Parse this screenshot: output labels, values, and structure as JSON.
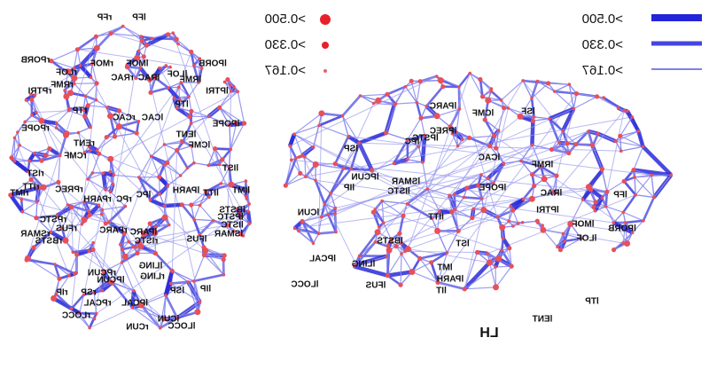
{
  "legend": {
    "nodes": [
      ">0.500",
      ">0.330",
      ">0.167"
    ],
    "edges": [
      ">0.500",
      ">0.330",
      ">0.167"
    ]
  },
  "axial_labels": [
    "rFP",
    "lFP",
    "rPORB",
    "rMOF",
    "lMOF",
    "lPORB",
    "rLOF",
    "lLOF",
    "rRMF",
    "rRAC",
    "lRAC",
    "lRMF",
    "rPTRI",
    "lPTRI",
    "rTP",
    "lTP",
    "rCAC",
    "lCAC",
    "rPOPE",
    "lPOPE",
    "rENT",
    "lENT",
    "rCMF",
    "lCMF",
    "rIST",
    "lIST",
    "rITT",
    "rIMT",
    "rPREC",
    "rPARH",
    "rPC",
    "lPC",
    "lPARH",
    "lITT",
    "lIMT",
    "rPSTC",
    "lPSTC",
    "rFUS",
    "rSMAR",
    "rBSTS",
    "rPARC",
    "lPARC",
    "rISTC",
    "lISTC",
    "lFUS",
    "lSMAR",
    "lBSTS",
    "rPCUN",
    "lLING",
    "rLING",
    "lPCUN",
    "rIP",
    "lIP",
    "rSP",
    "lSP",
    "rPCAL",
    "lPCAL",
    "rLOCC",
    "lLOCC",
    "rCUN",
    "lCUN"
  ],
  "sagittal_labels": [
    "lPARC",
    "lCMF",
    "lSF",
    "lPREC",
    "lPSTC",
    "lPC",
    "lSP",
    "lCAC",
    "lRMF",
    "lPCUN",
    "lIP",
    "lSMAR",
    "lISTC",
    "lPOPE",
    "lRAC",
    "lPTRI",
    "lFP",
    "lCUN",
    "lMOF",
    "lPORB",
    "lLOF",
    "lITT",
    "lBSTS",
    "lST",
    "lPCAL",
    "lLING",
    "lMT",
    "lPARH",
    "lIT",
    "lFUS",
    "lLOCC",
    "lENT",
    "lTP"
  ],
  "hemisphere": "LH"
}
